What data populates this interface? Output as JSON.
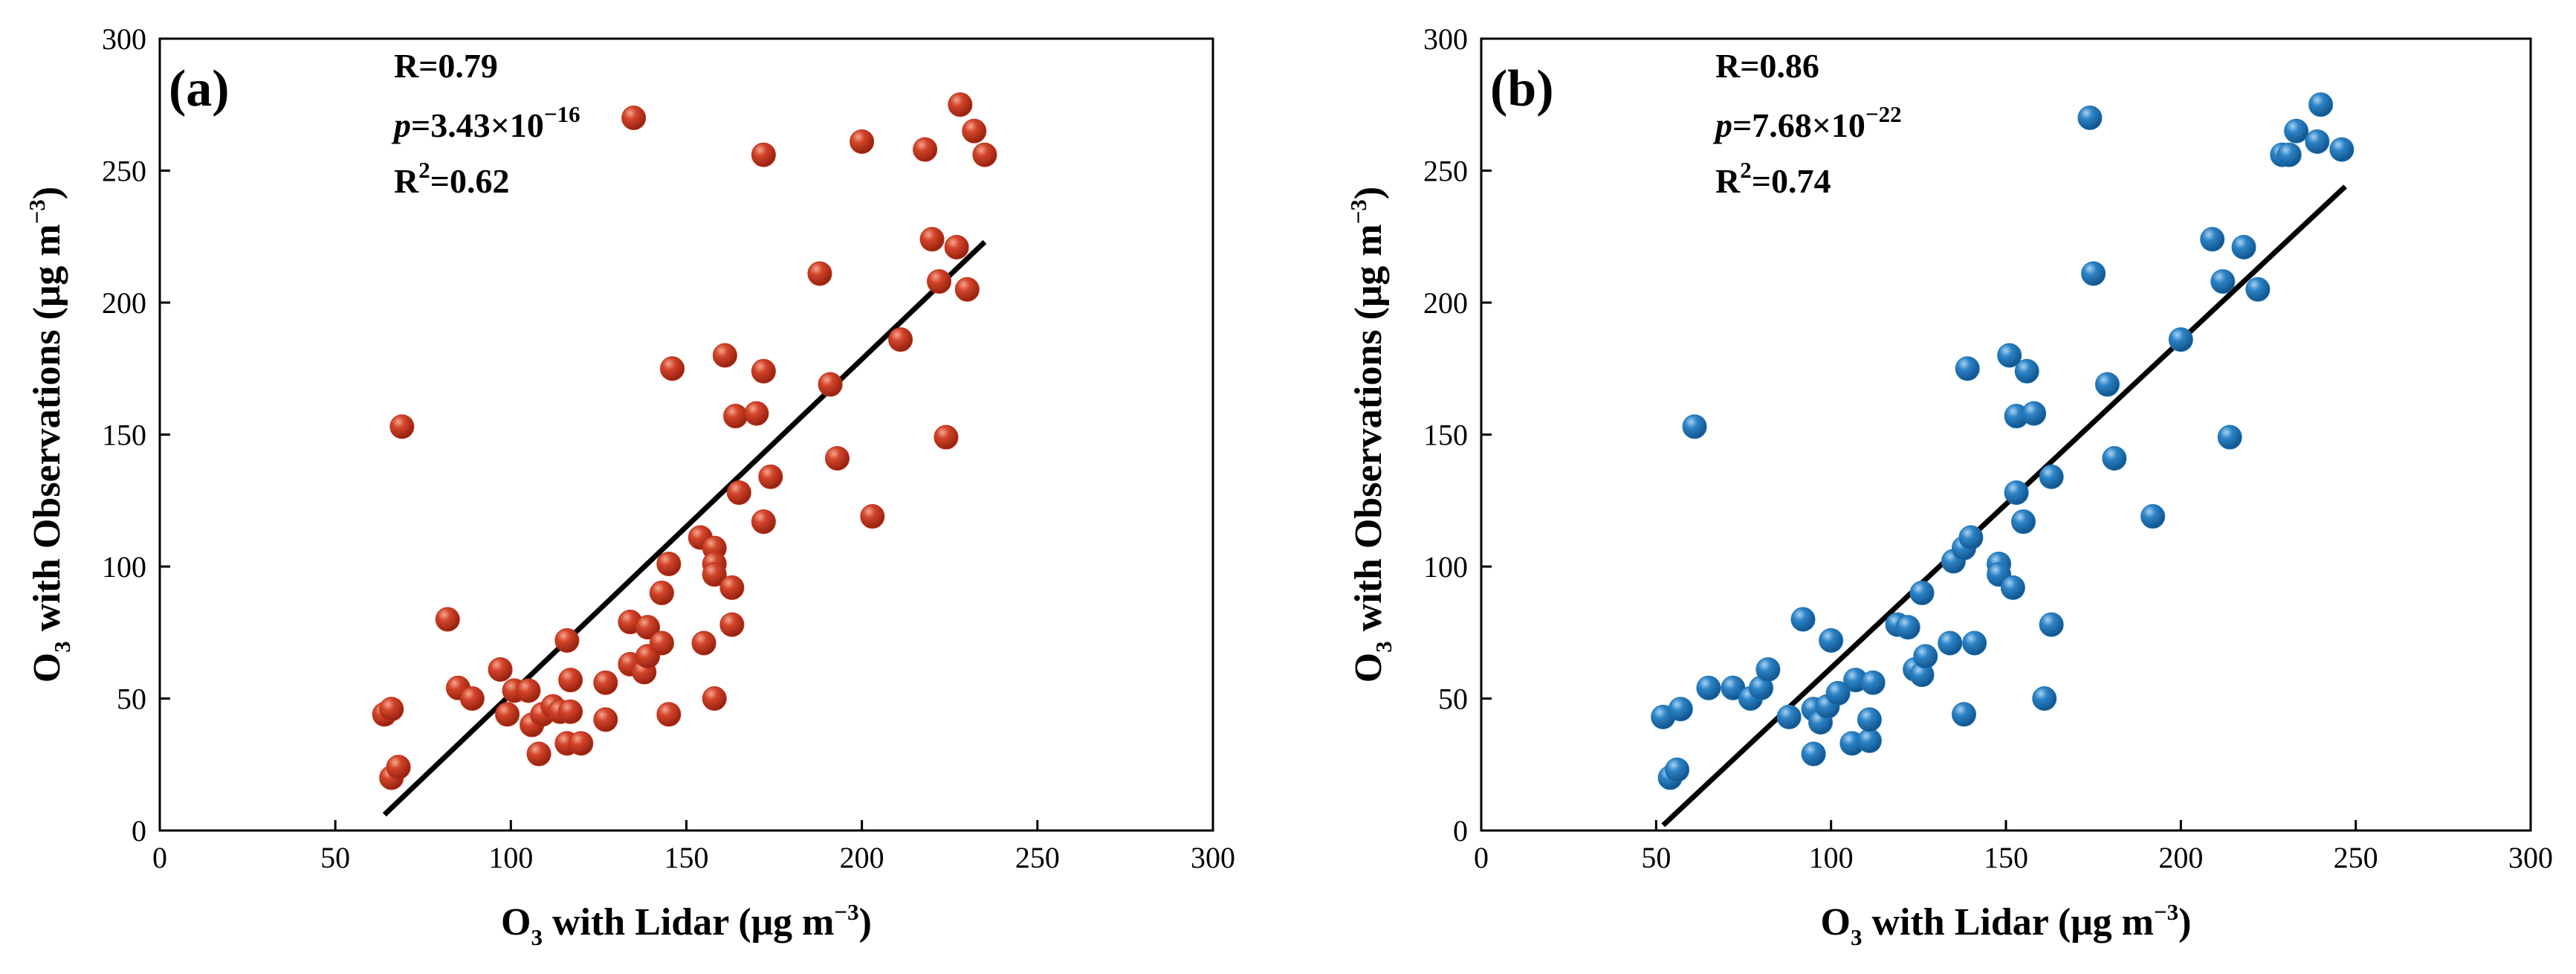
{
  "chart_data": [
    {
      "type": "scatter",
      "panel_label": "(a)",
      "marker_color": "#c0311a",
      "xlabel": {
        "main": "O",
        "sub": "3",
        "rest": " with Lidar (μg m",
        "sup": "−3",
        "end": ")"
      },
      "ylabel": {
        "main": "O",
        "sub": "3",
        "rest": " with Observations (μg m",
        "sup": "−3",
        "end": ")"
      },
      "xlim": [
        0,
        300
      ],
      "ylim": [
        0,
        300
      ],
      "xticks": [
        "0",
        "50",
        "100",
        "150",
        "200",
        "250",
        "300"
      ],
      "yticks": [
        "0",
        "50",
        "100",
        "150",
        "200",
        "250",
        "300"
      ],
      "stats": {
        "r": "R=0.79",
        "p_label": "p",
        "p_value": "=3.43×10",
        "p_exp": "−16",
        "r2_label": "R",
        "r2_sup": "2",
        "r2_value": "=0.62"
      },
      "fit_line": {
        "x": [
          64,
          235
        ],
        "y": [
          6,
          223
        ]
      },
      "points": [
        [
          64,
          44
        ],
        [
          66,
          46
        ],
        [
          66,
          20
        ],
        [
          68,
          24
        ],
        [
          69,
          153
        ],
        [
          82,
          80
        ],
        [
          85,
          54
        ],
        [
          89,
          50
        ],
        [
          97,
          61
        ],
        [
          99,
          44
        ],
        [
          101,
          53
        ],
        [
          105,
          53
        ],
        [
          106,
          40
        ],
        [
          108,
          29
        ],
        [
          109,
          44
        ],
        [
          112,
          47
        ],
        [
          114,
          45
        ],
        [
          116,
          72
        ],
        [
          116,
          33
        ],
        [
          117,
          57
        ],
        [
          117,
          45
        ],
        [
          120,
          33
        ],
        [
          127,
          56
        ],
        [
          127,
          42
        ],
        [
          134,
          79
        ],
        [
          134,
          63
        ],
        [
          135,
          270
        ],
        [
          138,
          60
        ],
        [
          139,
          77
        ],
        [
          139,
          66
        ],
        [
          143,
          71
        ],
        [
          143,
          90
        ],
        [
          145,
          101
        ],
        [
          145,
          44
        ],
        [
          146,
          175
        ],
        [
          154,
          111
        ],
        [
          155,
          71
        ],
        [
          158,
          50
        ],
        [
          158,
          107
        ],
        [
          158,
          101
        ],
        [
          158,
          97
        ],
        [
          161,
          180
        ],
        [
          163,
          92
        ],
        [
          163,
          78
        ],
        [
          164,
          157
        ],
        [
          165,
          128
        ],
        [
          170,
          158
        ],
        [
          172,
          117
        ],
        [
          172,
          256
        ],
        [
          172,
          174
        ],
        [
          174,
          134
        ],
        [
          188,
          211
        ],
        [
          191,
          169
        ],
        [
          193,
          141
        ],
        [
          200,
          261
        ],
        [
          203,
          119
        ],
        [
          211,
          186
        ],
        [
          218,
          258
        ],
        [
          220,
          224
        ],
        [
          222,
          208
        ],
        [
          224,
          149
        ],
        [
          227,
          221
        ],
        [
          228,
          275
        ],
        [
          230,
          205
        ],
        [
          232,
          265
        ],
        [
          235,
          256
        ]
      ]
    },
    {
      "type": "scatter",
      "panel_label": "(b)",
      "marker_color": "#1f74b8",
      "xlabel": {
        "main": "O",
        "sub": "3",
        "rest": " with Lidar (μg m",
        "sup": "−3",
        "end": ")"
      },
      "ylabel": {
        "main": "O",
        "sub": "3",
        "rest": " with Observations (μg m",
        "sup": "−3",
        "end": ")"
      },
      "xlim": [
        0,
        300
      ],
      "ylim": [
        0,
        300
      ],
      "xticks": [
        "0",
        "50",
        "100",
        "150",
        "200",
        "250",
        "300"
      ],
      "yticks": [
        "0",
        "50",
        "100",
        "150",
        "200",
        "250",
        "300"
      ],
      "stats": {
        "r": "R=0.86",
        "p_label": "p",
        "p_value": "=7.68×10",
        "p_exp": "−22",
        "r2_label": "R",
        "r2_sup": "2",
        "r2_value": "=0.74"
      },
      "fit_line": {
        "x": [
          52,
          247
        ],
        "y": [
          2,
          244
        ]
      },
      "points": [
        [
          52,
          43
        ],
        [
          54,
          20
        ],
        [
          56,
          23
        ],
        [
          57,
          46
        ],
        [
          61,
          153
        ],
        [
          65,
          54
        ],
        [
          72,
          54
        ],
        [
          77,
          50
        ],
        [
          80,
          54
        ],
        [
          82,
          61
        ],
        [
          88,
          43
        ],
        [
          92,
          80
        ],
        [
          95,
          29
        ],
        [
          95,
          46
        ],
        [
          97,
          41
        ],
        [
          99,
          47
        ],
        [
          100,
          72
        ],
        [
          102,
          52
        ],
        [
          106,
          33
        ],
        [
          107,
          57
        ],
        [
          111,
          34
        ],
        [
          111,
          42
        ],
        [
          112,
          56
        ],
        [
          119,
          78
        ],
        [
          122,
          77
        ],
        [
          124,
          61
        ],
        [
          126,
          90
        ],
        [
          126,
          59
        ],
        [
          127,
          66
        ],
        [
          134,
          71
        ],
        [
          135,
          102
        ],
        [
          138,
          107
        ],
        [
          138,
          44
        ],
        [
          139,
          175
        ],
        [
          140,
          111
        ],
        [
          141,
          71
        ],
        [
          148,
          101
        ],
        [
          148,
          97
        ],
        [
          151,
          180
        ],
        [
          152,
          92
        ],
        [
          153,
          157
        ],
        [
          153,
          128
        ],
        [
          155,
          117
        ],
        [
          156,
          174
        ],
        [
          158,
          158
        ],
        [
          161,
          50
        ],
        [
          163,
          134
        ],
        [
          163,
          78
        ],
        [
          174,
          270
        ],
        [
          175,
          211
        ],
        [
          179,
          169
        ],
        [
          181,
          141
        ],
        [
          192,
          119
        ],
        [
          200,
          186
        ],
        [
          209,
          224
        ],
        [
          212,
          208
        ],
        [
          214,
          149
        ],
        [
          218,
          221
        ],
        [
          222,
          205
        ],
        [
          229,
          256
        ],
        [
          231,
          256
        ],
        [
          233,
          265
        ],
        [
          239,
          261
        ],
        [
          240,
          275
        ],
        [
          246,
          258
        ]
      ]
    }
  ]
}
